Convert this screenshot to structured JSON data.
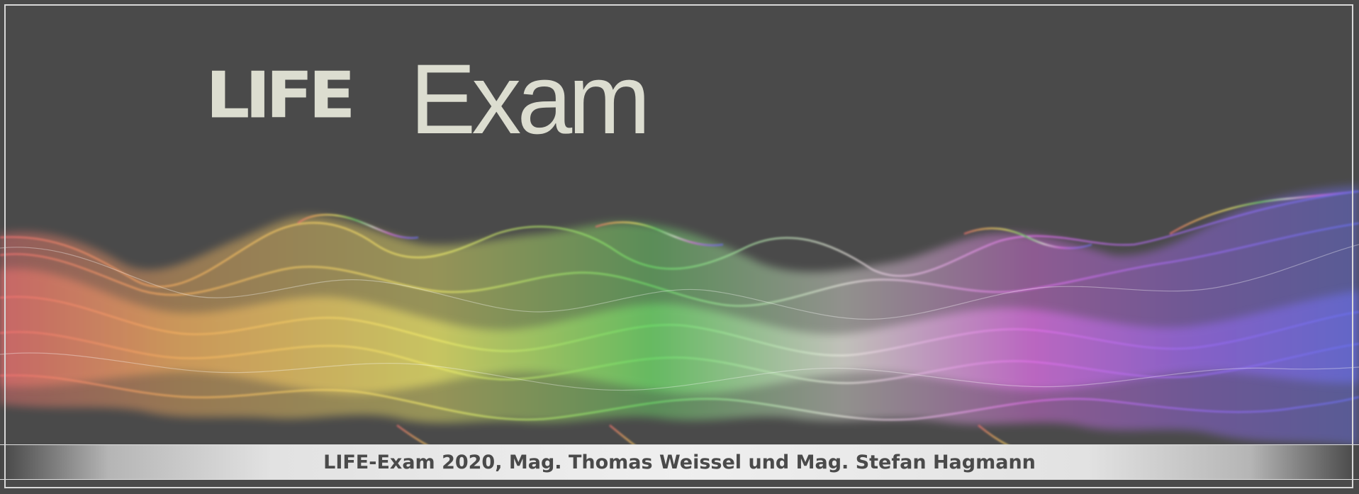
{
  "logo": {
    "life_text": "LIFE",
    "exam_text": "Exam"
  },
  "footer": {
    "text": "LIFE-Exam 2020, Mag. Thomas Weissel und Mag. Stefan Hagmann"
  },
  "colors": {
    "background": "#4a4a4a",
    "logo": "#dcddd0",
    "footer_text": "#4a4a4a",
    "smoke_red": "#f07070",
    "smoke_orange": "#f5b060",
    "smoke_yellow": "#f2ec6a",
    "smoke_green": "#6fe06a",
    "smoke_white": "#e8e8df",
    "smoke_magenta": "#e070e8",
    "smoke_purple": "#9a6af0",
    "smoke_blue": "#6a70f0"
  }
}
